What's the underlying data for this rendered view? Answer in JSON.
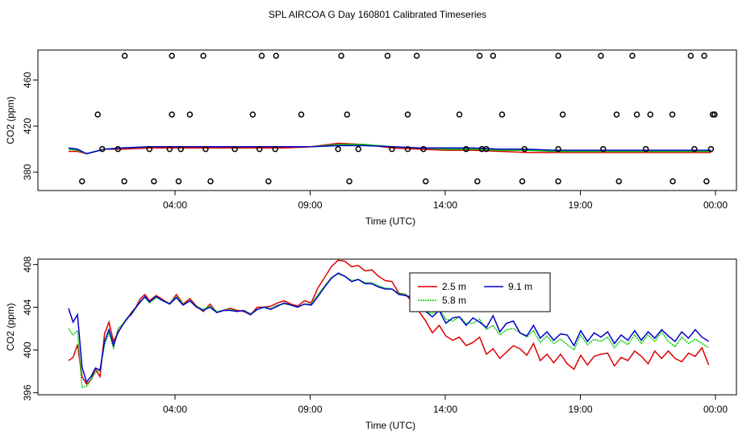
{
  "title": "SPL AIRCOA G  Day 160801  Calibrated Timeseries",
  "colors": {
    "s25": "#dd0000",
    "s58": "#00cc00",
    "s91": "#0000cc",
    "axis": "#000000"
  },
  "chart_data": [
    {
      "type": "scatter",
      "id": "top",
      "xlabel": "Time (UTC)",
      "ylabel": "CO2 (ppm)",
      "xlim": [
        0,
        1440
      ],
      "ylim": [
        364,
        486
      ],
      "x_ticks": [
        {
          "v": 240,
          "label": "04:00"
        },
        {
          "v": 540,
          "label": "09:00"
        },
        {
          "v": 840,
          "label": "14:00"
        },
        {
          "v": 1140,
          "label": "19:00"
        },
        {
          "v": 1440,
          "label": "00:00"
        }
      ],
      "y_ticks": [
        {
          "v": 380,
          "label": "380"
        },
        {
          "v": 420,
          "label": "420"
        },
        {
          "v": 460,
          "label": "460"
        }
      ],
      "points_x": [
        30,
        124,
        190,
        245,
        316,
        445,
        625,
        795,
        910,
        1010,
        1090,
        1225,
        1345,
        1420,
        75,
        110,
        180,
        225,
        250,
        305,
        370,
        425,
        460,
        600,
        645,
        720,
        755,
        790,
        885,
        920,
        930,
        1015,
        1090,
        1190,
        1285,
        1393,
        1430,
        65,
        230,
        270,
        410,
        518,
        620,
        755,
        870,
        965,
        1100,
        1220,
        1265,
        1295,
        1344,
        1434,
        1438
      ],
      "points_y": [
        372,
        372,
        372,
        372,
        372,
        372,
        372,
        372,
        372,
        372,
        372,
        372,
        372,
        372,
        400,
        400,
        400,
        400,
        400,
        400,
        400,
        400,
        400,
        400,
        400,
        400,
        400,
        400,
        400,
        400,
        400,
        400,
        400,
        400,
        400,
        400,
        400,
        430,
        430,
        430,
        430,
        430,
        430,
        430,
        430,
        430,
        430,
        430,
        430,
        430,
        430,
        430,
        430
      ],
      "points_x2": [
        125,
        230,
        300,
        430,
        462,
        607,
        710,
        775,
        915,
        945,
        1090,
        1185,
        1255,
        1385,
        1415
      ],
      "points_y2": [
        481,
        481,
        481,
        481,
        481,
        481,
        481,
        481,
        481,
        481,
        481,
        481,
        481,
        481,
        481
      ],
      "lines": {
        "x": [
          0,
          20,
          40,
          80,
          120,
          180,
          240,
          300,
          360,
          420,
          480,
          540,
          600,
          660,
          720,
          780,
          840,
          900,
          960,
          1020,
          1080,
          1140,
          1200,
          1260,
          1320,
          1380,
          1430
        ],
        "s25": [
          398,
          398,
          396,
          400,
          400,
          401,
          401,
          401,
          401,
          401,
          401,
          402,
          405,
          404,
          401,
          400,
          399,
          399,
          398,
          397,
          397,
          397,
          397,
          397,
          397,
          397,
          397
        ],
        "s58": [
          400,
          399,
          396,
          400,
          401,
          402,
          402,
          402,
          402,
          402,
          402,
          402,
          404,
          404,
          402,
          401,
          400,
          400,
          399,
          399,
          398,
          398,
          398,
          398,
          398,
          398,
          398
        ],
        "s91": [
          401,
          400,
          396,
          400,
          401,
          402,
          402,
          402,
          402,
          402,
          402,
          402,
          403,
          403,
          402,
          401,
          401,
          401,
          400,
          400,
          399,
          399,
          399,
          399,
          399,
          399,
          399
        ]
      }
    },
    {
      "type": "line",
      "id": "bottom",
      "xlabel": "Time (UTC)",
      "ylabel": "CO2 (ppm)",
      "xlim": [
        0,
        1440
      ],
      "ylim": [
        395.8,
        408.5
      ],
      "x_ticks": [
        {
          "v": 240,
          "label": "04:00"
        },
        {
          "v": 540,
          "label": "09:00"
        },
        {
          "v": 840,
          "label": "14:00"
        },
        {
          "v": 1140,
          "label": "19:00"
        },
        {
          "v": 1440,
          "label": "00:00"
        }
      ],
      "y_ticks": [
        {
          "v": 396,
          "label": "396"
        },
        {
          "v": 400,
          "label": "400"
        },
        {
          "v": 404,
          "label": "404"
        },
        {
          "v": 408,
          "label": "408"
        }
      ],
      "series": [
        {
          "name": "2.5 m",
          "key": "s25",
          "x": [
            0,
            10,
            20,
            30,
            40,
            50,
            60,
            70,
            80,
            90,
            100,
            110,
            120,
            130,
            140,
            150,
            160,
            170,
            180,
            195,
            210,
            225,
            240,
            255,
            270,
            285,
            300,
            315,
            330,
            345,
            360,
            375,
            390,
            405,
            420,
            435,
            450,
            465,
            480,
            495,
            510,
            525,
            540,
            555,
            570,
            585,
            600,
            615,
            630,
            645,
            660,
            675,
            690,
            705,
            720,
            735,
            750,
            765,
            780,
            795,
            810,
            825,
            840,
            855,
            870,
            885,
            900,
            915,
            930,
            945,
            960,
            975,
            990,
            1005,
            1020,
            1035,
            1050,
            1065,
            1080,
            1095,
            1110,
            1125,
            1140,
            1155,
            1170,
            1185,
            1200,
            1215,
            1230,
            1245,
            1260,
            1275,
            1290,
            1305,
            1320,
            1335,
            1350,
            1365,
            1380,
            1395,
            1410,
            1425
          ],
          "y": [
            399,
            399.3,
            400.5,
            397.5,
            396.8,
            397.2,
            398.2,
            397.5,
            401.5,
            402.6,
            400.8,
            401.6,
            402.3,
            402.9,
            403.5,
            404,
            404.8,
            405.2,
            404.6,
            405.1,
            404.7,
            404.3,
            405.2,
            404.3,
            404.8,
            404.1,
            403.6,
            404.3,
            403.5,
            403.7,
            403.9,
            403.7,
            403.6,
            403.3,
            404,
            404,
            404.1,
            404.4,
            404.6,
            404.3,
            404.1,
            404.6,
            404.4,
            405.8,
            406.8,
            407.8,
            408.4,
            408.3,
            407.8,
            407.9,
            407.4,
            407.5,
            406.9,
            406.5,
            406.4,
            405.3,
            405.2,
            404.5,
            403.6,
            402.7,
            401.6,
            402.3,
            401.3,
            400.9,
            401.2,
            400.4,
            400.7,
            401.2,
            399.6,
            400.1,
            399.2,
            399.8,
            400.4,
            400.1,
            399.5,
            400.6,
            399,
            399.6,
            398.8,
            399.6,
            398.7,
            398.2,
            399.5,
            398.6,
            399.4,
            399.6,
            399.7,
            398.5,
            399.3,
            399,
            399.9,
            399.4,
            398.7,
            399.9,
            399.2,
            399.9,
            399.2,
            398.9,
            399.7,
            399.4,
            400.2,
            398.6
          ]
        },
        {
          "name": "5.8 m",
          "key": "s58",
          "x": [
            0,
            10,
            20,
            30,
            40,
            50,
            60,
            70,
            80,
            90,
            100,
            110,
            120,
            130,
            140,
            150,
            160,
            170,
            180,
            195,
            210,
            225,
            240,
            255,
            270,
            285,
            300,
            315,
            330,
            345,
            360,
            375,
            390,
            405,
            420,
            435,
            450,
            465,
            480,
            495,
            510,
            525,
            540,
            555,
            570,
            585,
            600,
            615,
            630,
            645,
            660,
            675,
            690,
            705,
            720,
            735,
            750,
            765,
            780,
            795,
            810,
            825,
            840,
            855,
            870,
            885,
            900,
            915,
            930,
            945,
            960,
            975,
            990,
            1005,
            1020,
            1035,
            1050,
            1065,
            1080,
            1095,
            1110,
            1125,
            1140,
            1155,
            1170,
            1185,
            1200,
            1215,
            1230,
            1245,
            1260,
            1275,
            1290,
            1305,
            1320,
            1335,
            1350,
            1365,
            1380,
            1395,
            1410,
            1425
          ],
          "y": [
            402,
            401.4,
            401.8,
            396.5,
            396.6,
            397.2,
            397.9,
            398.1,
            400.5,
            401.6,
            400.2,
            402,
            402.4,
            403,
            403.3,
            403.9,
            404.6,
            404.9,
            404.4,
            404.9,
            404.6,
            404.4,
            405,
            404.3,
            404.6,
            404.1,
            403.8,
            404.1,
            403.6,
            403.7,
            403.8,
            403.6,
            403.7,
            403.4,
            403.8,
            404,
            403.9,
            404.2,
            404.3,
            404.2,
            404,
            404.3,
            404.3,
            405.2,
            406,
            406.8,
            407.1,
            406.9,
            406.5,
            406.6,
            406.3,
            406.3,
            406,
            405.8,
            405.7,
            405.3,
            405.2,
            404.7,
            404.1,
            403.6,
            403.4,
            403.8,
            402.9,
            402.7,
            403.1,
            402.5,
            402.5,
            402.9,
            401.9,
            402.3,
            401.4,
            401.9,
            402,
            401.6,
            401.2,
            401.8,
            400.7,
            401.3,
            400.6,
            401,
            400.5,
            400,
            401.4,
            400.5,
            401,
            400.8,
            401.2,
            400.2,
            400.9,
            400.5,
            401.4,
            400.6,
            401.4,
            400.8,
            401.7,
            400.8,
            400.3,
            401.2,
            400.6,
            401,
            400.6,
            400.2
          ]
        },
        {
          "name": "9.1 m",
          "key": "s91",
          "x": [
            0,
            10,
            20,
            30,
            40,
            50,
            60,
            70,
            80,
            90,
            100,
            110,
            120,
            130,
            140,
            150,
            160,
            170,
            180,
            195,
            210,
            225,
            240,
            255,
            270,
            285,
            300,
            315,
            330,
            345,
            360,
            375,
            390,
            405,
            420,
            435,
            450,
            465,
            480,
            495,
            510,
            525,
            540,
            555,
            570,
            585,
            600,
            615,
            630,
            645,
            660,
            675,
            690,
            705,
            720,
            735,
            750,
            765,
            780,
            795,
            810,
            825,
            840,
            855,
            870,
            885,
            900,
            915,
            930,
            945,
            960,
            975,
            990,
            1005,
            1020,
            1035,
            1050,
            1065,
            1080,
            1095,
            1110,
            1125,
            1140,
            1155,
            1170,
            1185,
            1200,
            1215,
            1230,
            1245,
            1260,
            1275,
            1290,
            1305,
            1320,
            1335,
            1350,
            1365,
            1380,
            1395,
            1410,
            1425
          ],
          "y": [
            403.9,
            402.6,
            403.3,
            398.4,
            397,
            397.5,
            398.3,
            398.1,
            400.8,
            401.9,
            400.4,
            401.7,
            402.3,
            402.9,
            403.4,
            404,
            404.5,
            405,
            404.5,
            405,
            404.6,
            404.3,
            404.9,
            404.2,
            404.6,
            404,
            403.7,
            404,
            403.5,
            403.7,
            403.7,
            403.6,
            403.7,
            403.3,
            403.8,
            404,
            403.8,
            404.1,
            404.4,
            404.2,
            404,
            404.3,
            404.2,
            405,
            405.9,
            406.7,
            407.2,
            406.9,
            406.4,
            406.6,
            406.2,
            406.2,
            405.9,
            405.7,
            405.7,
            405.2,
            405.1,
            404.9,
            404.5,
            403.6,
            403.1,
            403.7,
            402.5,
            403,
            403.1,
            402.3,
            403,
            402.6,
            402.1,
            403.2,
            401.7,
            402.5,
            402.7,
            401.6,
            401.3,
            402.3,
            401.1,
            401.7,
            400.9,
            401.5,
            401.4,
            400.4,
            401.8,
            400.8,
            401.6,
            401.2,
            401.7,
            400.6,
            401.4,
            400.9,
            401.8,
            400.9,
            401.7,
            401.1,
            401.9,
            401.3,
            400.8,
            401.7,
            401.1,
            401.9,
            401.2,
            400.8
          ]
        }
      ],
      "legend": {
        "position": "top-right",
        "entries": [
          "2.5 m",
          "9.1 m",
          "5.8 m"
        ]
      }
    }
  ]
}
